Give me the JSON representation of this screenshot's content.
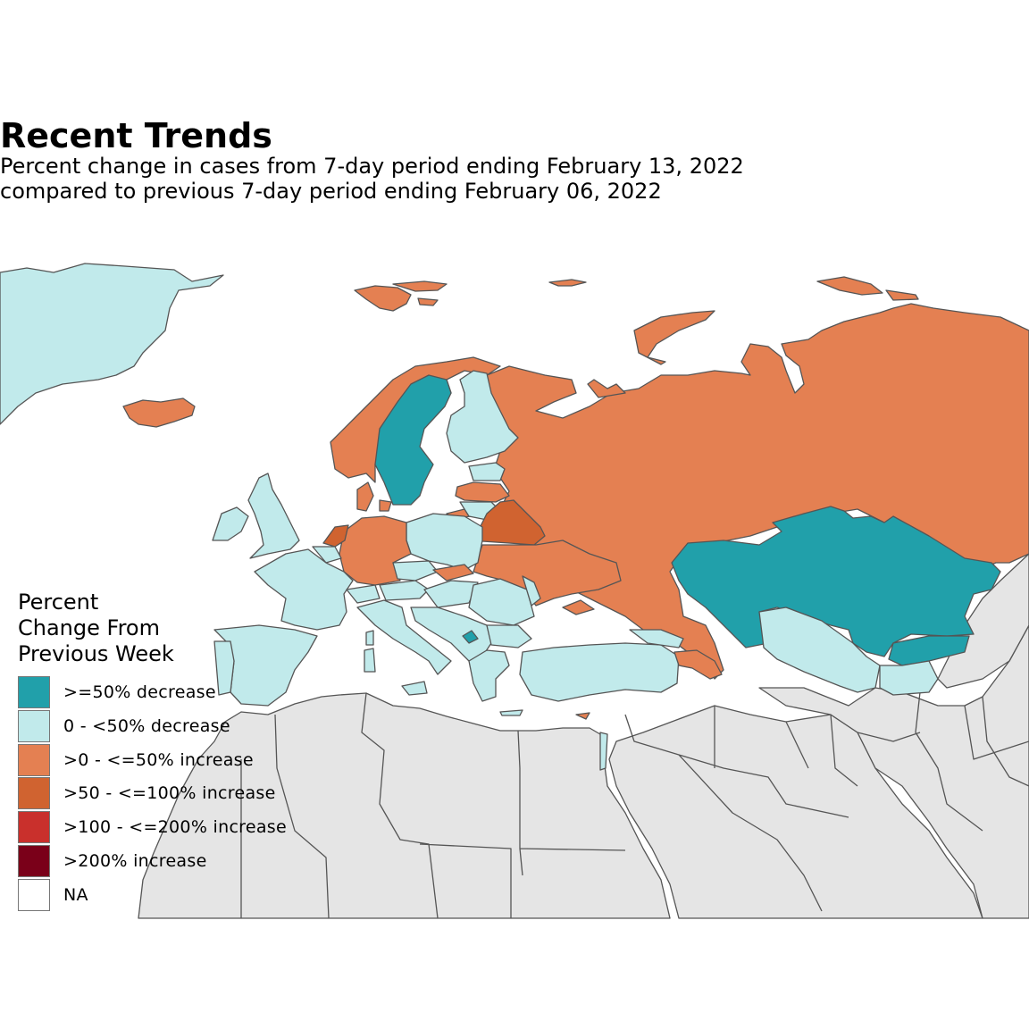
{
  "title": "Recent Trends",
  "subtitle": [
    "Percent change in cases from 7-day period ending February 13, 2022",
    "compared to previous 7-day period ending February 06, 2022"
  ],
  "legend": {
    "title_lines": [
      "Percent",
      "Change From",
      "Previous Week"
    ],
    "items": [
      {
        "label": ">=50% decrease",
        "color": "#21A0AA"
      },
      {
        "label": "0 - <50% decrease",
        "color": "#C1EAEB"
      },
      {
        "label": ">0 - <=50% increase",
        "color": "#E48052"
      },
      {
        "label": ">50 - <=100% increase",
        "color": "#D06330"
      },
      {
        "label": ">100 - <=200% increase",
        "color": "#C9302C"
      },
      {
        "label": ">200% increase",
        "color": "#7A0019"
      },
      {
        "label": "NA",
        "color": "#FFFFFF"
      }
    ]
  },
  "colors": {
    "no_data_land": "#E5E5E5",
    "border": "#555555",
    "sea": "#FFFFFF"
  },
  "regions": {
    "Greenland": ">0 - <50% decrease placeholder",
    "Iceland": ">0 - <=50% increase",
    "Svalbard": ">0 - <=50% increase",
    "Norway": ">0 - <=50% increase",
    "Sweden": ">=50% decrease",
    "Finland": "0 - <50% decrease",
    "Russia": ">0 - <=50% increase",
    "Kazakhstan": ">=50% decrease",
    "Belarus": ">50 - <=100% increase",
    "Netherlands": ">50 - <=100% increase",
    "Germany": ">0 - <=50% increase",
    "Denmark": ">0 - <=50% increase",
    "Ukraine": ">0 - <=50% increase",
    "Latvia": ">0 - <=50% increase",
    "Slovakia": ">0 - <=50% increase",
    "Kosovo": ">=50% decrease",
    "Kyrgyzstan": ">=50% decrease",
    "Georgia": ">0 - <=50% increase",
    "Armenia": ">0 - <=50% increase",
    "Cyprus": ">0 - <=50% increase",
    "United Kingdom": "0 - <50% decrease",
    "Ireland": "0 - <50% decrease",
    "France": "0 - <50% decrease",
    "Spain": "0 - <50% decrease",
    "Portugal": "0 - <50% decrease",
    "Italy": "0 - <50% decrease",
    "Poland": "0 - <50% decrease",
    "Romania": "0 - <50% decrease",
    "Turkey": "0 - <50% decrease",
    "Greece": "0 - <50% decrease",
    "Uzbekistan": "0 - <50% decrease",
    "Estonia": "0 - <50% decrease",
    "Lithuania": "0 - <50% decrease",
    "Israel": "0 - <50% decrease"
  }
}
